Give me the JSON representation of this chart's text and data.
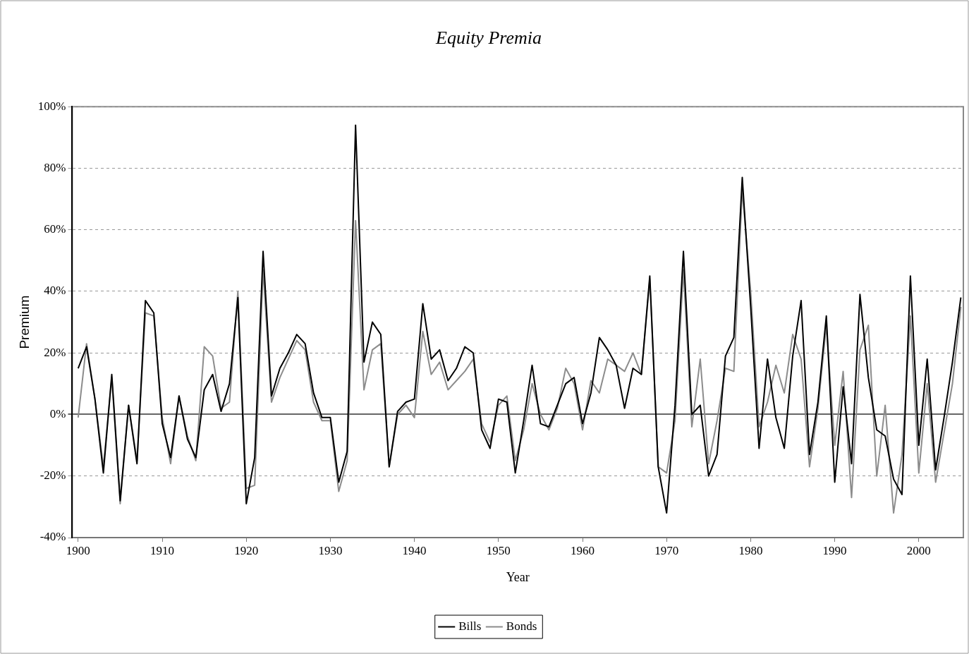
{
  "chart_data": {
    "type": "line",
    "title": "Equity Premia",
    "xlabel": "Year",
    "ylabel": "Premium",
    "x": [
      1900,
      1901,
      1902,
      1903,
      1904,
      1905,
      1906,
      1907,
      1908,
      1909,
      1910,
      1911,
      1912,
      1913,
      1914,
      1915,
      1916,
      1917,
      1918,
      1919,
      1920,
      1921,
      1922,
      1923,
      1924,
      1925,
      1926,
      1927,
      1928,
      1929,
      1930,
      1931,
      1932,
      1933,
      1934,
      1935,
      1936,
      1937,
      1938,
      1939,
      1940,
      1941,
      1942,
      1943,
      1944,
      1945,
      1946,
      1947,
      1948,
      1949,
      1950,
      1951,
      1952,
      1953,
      1954,
      1955,
      1956,
      1957,
      1958,
      1959,
      1960,
      1961,
      1962,
      1963,
      1964,
      1965,
      1966,
      1967,
      1968,
      1969,
      1970,
      1971,
      1972,
      1973,
      1974,
      1975,
      1976,
      1977,
      1978,
      1979,
      1980,
      1981,
      1982,
      1983,
      1984,
      1985,
      1986,
      1987,
      1988,
      1989,
      1990,
      1991,
      1992,
      1993,
      1994,
      1995,
      1996,
      1997,
      1998,
      1999,
      2000,
      2001,
      2002,
      2003,
      2004,
      2005
    ],
    "series": [
      {
        "name": "Bills",
        "color": "#000000",
        "values": [
          15,
          22,
          5,
          -19,
          13,
          -28,
          3,
          -16,
          37,
          33,
          -3,
          -14,
          6,
          -8,
          -14,
          8,
          13,
          1,
          10,
          38,
          -29,
          -14,
          53,
          6,
          15,
          20,
          26,
          23,
          7,
          -1,
          -1,
          -22,
          -12,
          94,
          17,
          30,
          26,
          -17,
          1,
          4,
          5,
          36,
          18,
          21,
          11,
          15,
          22,
          20,
          -5,
          -11,
          5,
          4,
          -19,
          -2,
          16,
          -3,
          -4,
          3,
          10,
          12,
          -3,
          7,
          25,
          21,
          16,
          2,
          15,
          13,
          45,
          -17,
          -32,
          3,
          53,
          0,
          3,
          -20,
          -13,
          19,
          25,
          77,
          35,
          -11,
          18,
          -1,
          -11,
          19,
          37,
          -13,
          4,
          32,
          -22,
          9,
          -16,
          39,
          12,
          -5,
          -7,
          -21,
          -26,
          45,
          -10,
          18,
          -18,
          -1,
          17,
          38
        ]
      },
      {
        "name": "Bonds",
        "color": "#8c8c8c",
        "values": [
          -1,
          23,
          5,
          -17,
          12,
          -29,
          3,
          -15,
          33,
          32,
          -1,
          -16,
          6,
          -7,
          -15,
          22,
          19,
          2,
          4,
          40,
          -24,
          -23,
          47,
          4,
          12,
          18,
          24,
          21,
          4,
          -2,
          -2,
          -25,
          -15,
          63,
          8,
          21,
          23,
          -17,
          0,
          3,
          -1,
          27,
          13,
          17,
          8,
          11,
          14,
          18,
          -3,
          -9,
          3,
          6,
          -15,
          -5,
          10,
          0,
          -5,
          2,
          15,
          10,
          -5,
          11,
          7,
          18,
          16,
          14,
          20,
          13,
          44,
          -17,
          -19,
          -2,
          47,
          -4,
          18,
          -16,
          -2,
          15,
          14,
          73,
          40,
          -4,
          4,
          16,
          7,
          26,
          18,
          -17,
          2,
          29,
          -10,
          14,
          -27,
          21,
          29,
          -20,
          3,
          -32,
          -13,
          32,
          -19,
          10,
          -22,
          -6,
          10,
          35
        ]
      }
    ],
    "xlim": [
      1899.3,
      2005.3
    ],
    "xticks": [
      1900,
      1910,
      1920,
      1930,
      1940,
      1950,
      1960,
      1970,
      1980,
      1990,
      2000
    ],
    "ylim": [
      -40,
      100
    ],
    "yticks": [
      {
        "value": -40,
        "label": "-40%"
      },
      {
        "value": -20,
        "label": "-20%"
      },
      {
        "value": 0,
        "label": "0%"
      },
      {
        "value": 20,
        "label": "20%"
      },
      {
        "value": 40,
        "label": "40%"
      },
      {
        "value": 60,
        "label": "60%"
      },
      {
        "value": 80,
        "label": "80%"
      },
      {
        "value": 100,
        "label": "100%"
      }
    ],
    "grid": "y",
    "legend": "bottom",
    "marker": "none",
    "line_style": "solid"
  }
}
